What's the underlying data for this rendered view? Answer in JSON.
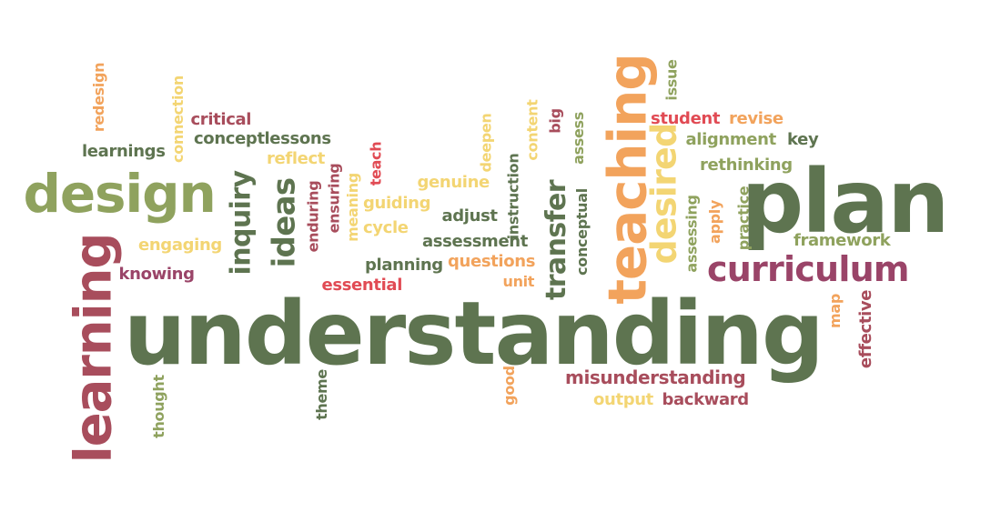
{
  "palette": {
    "green": "#5e7450",
    "light_green": "#8fa25e",
    "maroon": "#a84d5c",
    "plum": "#9a4468",
    "orange": "#f2a35c",
    "yellow": "#f3d573",
    "red": "#e14b54"
  },
  "words": [
    {
      "text": "understanding",
      "color": "green"
    },
    {
      "text": "plan",
      "color": "green"
    },
    {
      "text": "learning",
      "color": "maroon"
    },
    {
      "text": "teaching",
      "color": "orange"
    },
    {
      "text": "design",
      "color": "light_green"
    },
    {
      "text": "curriculum",
      "color": "plum"
    },
    {
      "text": "desired",
      "color": "yellow"
    },
    {
      "text": "transfer",
      "color": "green"
    },
    {
      "text": "ideas",
      "color": "green"
    },
    {
      "text": "inquiry",
      "color": "green"
    },
    {
      "text": "misunderstanding",
      "color": "maroon"
    },
    {
      "text": "student",
      "color": "red"
    },
    {
      "text": "revise",
      "color": "orange"
    },
    {
      "text": "alignment",
      "color": "light_green"
    },
    {
      "text": "key",
      "color": "green"
    },
    {
      "text": "rethinking",
      "color": "light_green"
    },
    {
      "text": "framework",
      "color": "light_green"
    },
    {
      "text": "issue",
      "color": "light_green"
    },
    {
      "text": "assessing",
      "color": "light_green"
    },
    {
      "text": "apply",
      "color": "orange"
    },
    {
      "text": "practice",
      "color": "light_green"
    },
    {
      "text": "map",
      "color": "orange"
    },
    {
      "text": "effective",
      "color": "maroon"
    },
    {
      "text": "backward",
      "color": "maroon"
    },
    {
      "text": "output",
      "color": "yellow"
    },
    {
      "text": "good",
      "color": "orange"
    },
    {
      "text": "unit",
      "color": "orange"
    },
    {
      "text": "questions",
      "color": "orange"
    },
    {
      "text": "planning",
      "color": "green"
    },
    {
      "text": "assessment",
      "color": "green"
    },
    {
      "text": "adjust",
      "color": "green"
    },
    {
      "text": "genuine",
      "color": "yellow"
    },
    {
      "text": "instruction",
      "color": "green"
    },
    {
      "text": "conceptual",
      "color": "green"
    },
    {
      "text": "assess",
      "color": "light_green"
    },
    {
      "text": "big",
      "color": "maroon"
    },
    {
      "text": "content",
      "color": "yellow"
    },
    {
      "text": "deepen",
      "color": "yellow"
    },
    {
      "text": "guiding",
      "color": "yellow"
    },
    {
      "text": "cycle",
      "color": "yellow"
    },
    {
      "text": "essential",
      "color": "red"
    },
    {
      "text": "theme",
      "color": "green"
    },
    {
      "text": "teach",
      "color": "red"
    },
    {
      "text": "meaning",
      "color": "yellow"
    },
    {
      "text": "ensuring",
      "color": "maroon"
    },
    {
      "text": "enduring",
      "color": "maroon"
    },
    {
      "text": "reflect",
      "color": "yellow"
    },
    {
      "text": "concept",
      "color": "green"
    },
    {
      "text": "lessons",
      "color": "green"
    },
    {
      "text": "critical",
      "color": "maroon"
    },
    {
      "text": "connection",
      "color": "yellow"
    },
    {
      "text": "redesign",
      "color": "orange"
    },
    {
      "text": "learnings",
      "color": "green"
    },
    {
      "text": "engaging",
      "color": "yellow"
    },
    {
      "text": "knowing",
      "color": "plum"
    },
    {
      "text": "thought",
      "color": "light_green"
    }
  ]
}
